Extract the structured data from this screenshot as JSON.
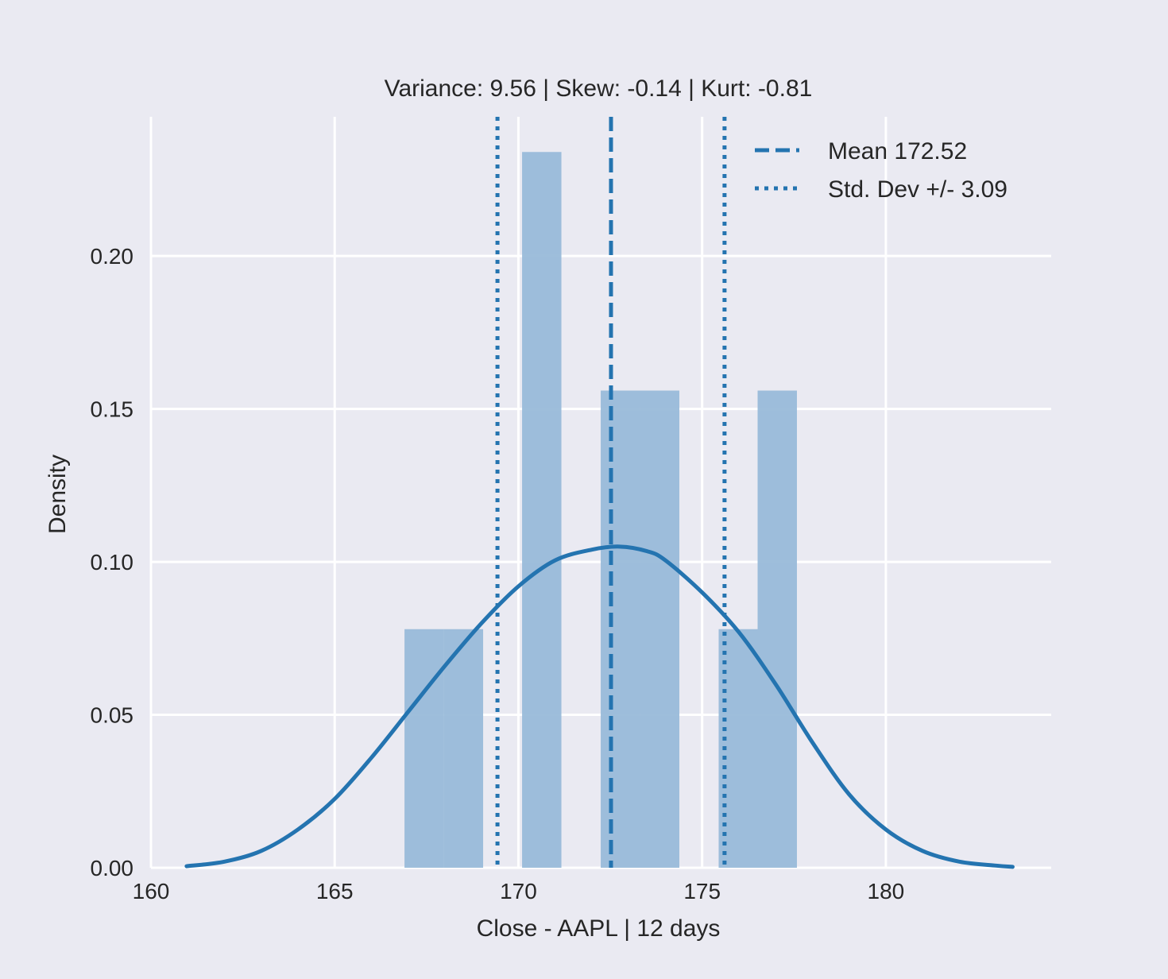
{
  "chart_data": {
    "type": "histogram",
    "title": "Variance: 9.56 | Skew: -0.14 | Kurt: -0.81",
    "xlabel": "Close - AAPL | 12 days",
    "ylabel": "Density",
    "xlim": [
      160,
      184.5
    ],
    "ylim": [
      0,
      0.2455
    ],
    "xticks": [
      160,
      165,
      170,
      175,
      180
    ],
    "xtick_labels": [
      "160",
      "165",
      "170",
      "175",
      "180"
    ],
    "yticks": [
      0.0,
      0.05,
      0.1,
      0.15,
      0.2
    ],
    "ytick_labels": [
      "0.00",
      "0.05",
      "0.10",
      "0.15",
      "0.20"
    ],
    "grid": true,
    "legend_position": "top-right",
    "colors": {
      "background": "#eaeaf2",
      "grid": "#ffffff",
      "bar": "#99bbd9",
      "line": "#2474b0"
    },
    "bars": [
      {
        "x0": 166.9,
        "x1": 167.97,
        "height": 0.078
      },
      {
        "x0": 167.97,
        "x1": 169.04,
        "height": 0.078
      },
      {
        "x0": 170.1,
        "x1": 171.17,
        "height": 0.234
      },
      {
        "x0": 172.24,
        "x1": 173.31,
        "height": 0.156
      },
      {
        "x0": 173.31,
        "x1": 174.38,
        "height": 0.156
      },
      {
        "x0": 175.45,
        "x1": 176.51,
        "height": 0.078
      },
      {
        "x0": 176.51,
        "x1": 177.58,
        "height": 0.156
      }
    ],
    "kde": {
      "x": [
        160.97,
        162.0,
        163.0,
        164.0,
        165.0,
        166.0,
        167.0,
        168.0,
        169.0,
        170.0,
        171.0,
        172.0,
        172.75,
        173.5,
        174.0,
        175.0,
        176.0,
        177.0,
        178.0,
        179.0,
        180.0,
        181.0,
        182.0,
        183.0,
        183.45
      ],
      "y": [
        0.0005,
        0.002,
        0.0055,
        0.0125,
        0.0225,
        0.036,
        0.051,
        0.066,
        0.08,
        0.092,
        0.1005,
        0.104,
        0.105,
        0.1035,
        0.1005,
        0.09,
        0.077,
        0.06,
        0.041,
        0.024,
        0.0125,
        0.0055,
        0.002,
        0.0007,
        0.0003
      ]
    },
    "mean_line": {
      "x": 172.52,
      "label": "Mean 172.52"
    },
    "std_lines": {
      "x": [
        169.43,
        175.61
      ],
      "label": "Std. Dev +/- 3.09"
    }
  }
}
